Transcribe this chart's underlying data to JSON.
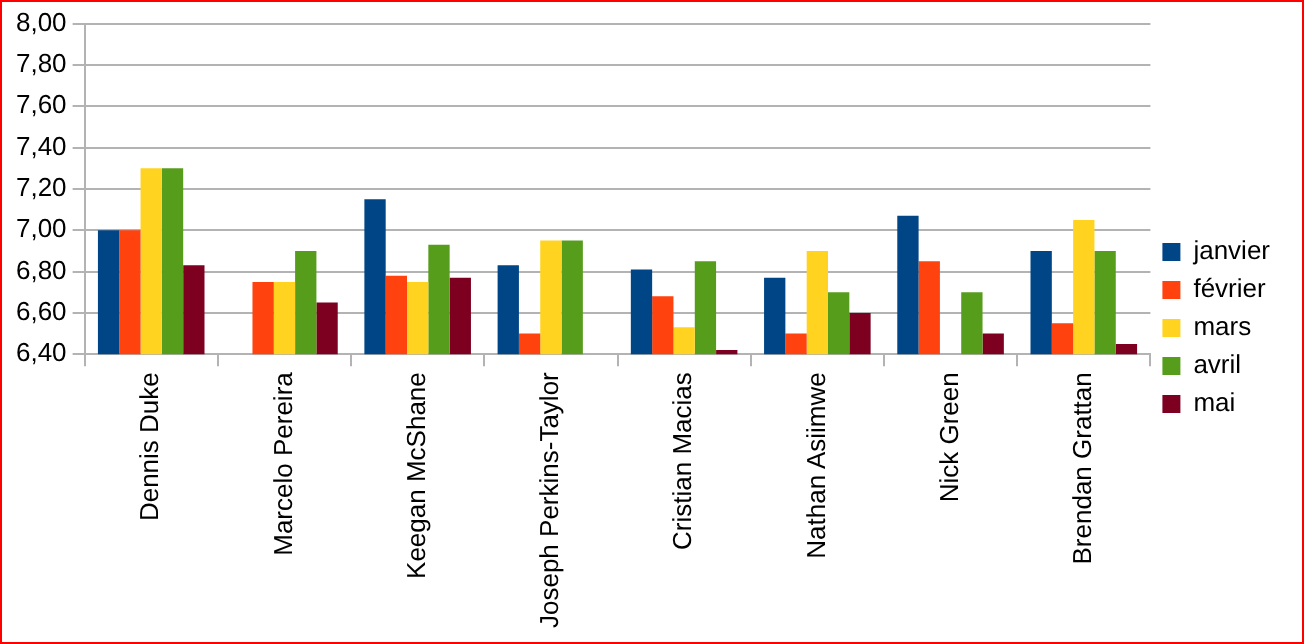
{
  "chart_data": {
    "type": "bar",
    "categories": [
      "Dennis Duke",
      "Marcelo Pereira",
      "Keegan McShane",
      "Joseph Perkins-Taylor",
      "Cristian Macias",
      "Nathan Asiimwe",
      "Nick Green",
      "Brendan Grattan"
    ],
    "series": [
      {
        "name": "janvier",
        "color": "#004586",
        "values": [
          7.0,
          null,
          7.15,
          6.83,
          6.81,
          6.77,
          7.07,
          6.9
        ]
      },
      {
        "name": "février",
        "color": "#ff420e",
        "values": [
          7.0,
          6.75,
          6.78,
          6.5,
          6.68,
          6.5,
          6.85,
          6.55
        ]
      },
      {
        "name": "mars",
        "color": "#ffd320",
        "values": [
          7.3,
          6.75,
          6.75,
          6.95,
          6.53,
          6.9,
          null,
          7.05
        ]
      },
      {
        "name": "avril",
        "color": "#579d1c",
        "values": [
          7.3,
          6.9,
          6.93,
          6.95,
          6.85,
          6.7,
          6.7,
          6.9
        ]
      },
      {
        "name": "mai",
        "color": "#7e0021",
        "values": [
          6.83,
          6.65,
          6.77,
          null,
          6.42,
          6.6,
          6.5,
          6.45
        ]
      }
    ],
    "ylim": [
      6.4,
      8.0
    ],
    "yticks": [
      {
        "value": 6.4,
        "label": "6,40"
      },
      {
        "value": 6.6,
        "label": "6,60"
      },
      {
        "value": 6.8,
        "label": "6,80"
      },
      {
        "value": 7.0,
        "label": "7,00"
      },
      {
        "value": 7.2,
        "label": "7,20"
      },
      {
        "value": 7.4,
        "label": "7,40"
      },
      {
        "value": 7.6,
        "label": "7,60"
      },
      {
        "value": 7.8,
        "label": "7,80"
      },
      {
        "value": 8.0,
        "label": "8,00"
      }
    ],
    "grid": "y",
    "legend": "right"
  }
}
